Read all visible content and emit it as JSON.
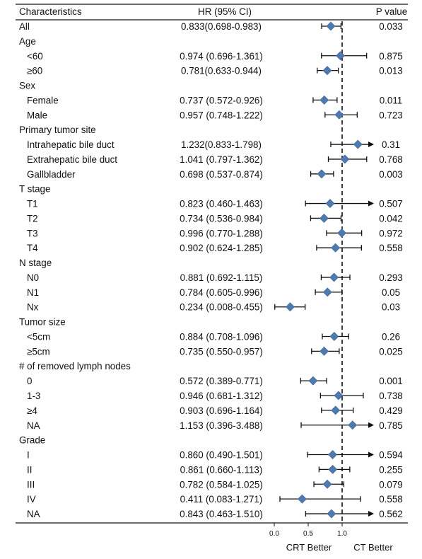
{
  "chart_data": {
    "type": "forest",
    "columns": {
      "characteristics": "Characteristics",
      "hr": "HR (95% CI)",
      "p": "P value"
    },
    "x_axis": {
      "ticks": [
        "0.0",
        "0.5",
        "1.0"
      ],
      "reference_line": 1.0,
      "xlim": [
        0.0,
        1.5
      ]
    },
    "footer": {
      "left": "CRT Better",
      "right": "CT Better"
    },
    "rows": [
      {
        "label": "All",
        "indent": 0,
        "hr_text": "0.833(0.698-0.983)",
        "p": "0.033",
        "hr": 0.833,
        "lo": 0.698,
        "hi": 0.983,
        "arrow": false
      },
      {
        "label": "Age",
        "indent": 0
      },
      {
        "label": "<60",
        "indent": 1,
        "hr_text": "0.974 (0.696-1.361)",
        "p": "0.875",
        "hr": 0.974,
        "lo": 0.696,
        "hi": 1.361,
        "arrow": false
      },
      {
        "label": "≥60",
        "indent": 1,
        "hr_text": "0.781(0.633-0.944)",
        "p": "0.013",
        "hr": 0.781,
        "lo": 0.633,
        "hi": 0.944,
        "arrow": false
      },
      {
        "label": "Sex",
        "indent": 0
      },
      {
        "label": "Female",
        "indent": 1,
        "hr_text": "0.737 (0.572-0.926)",
        "p": "0.011",
        "hr": 0.737,
        "lo": 0.572,
        "hi": 0.926,
        "arrow": false
      },
      {
        "label": "Male",
        "indent": 1,
        "hr_text": "0.957 (0.748-1.222)",
        "p": "0.723",
        "hr": 0.957,
        "lo": 0.748,
        "hi": 1.222,
        "arrow": false
      },
      {
        "label": "Primary tumor site",
        "indent": 0
      },
      {
        "label": "Intrahepatic bile duct",
        "indent": 1,
        "hr_text": "1.232(0.833-1.798)",
        "p": "0.31",
        "hr": 1.232,
        "lo": 0.833,
        "hi": 1.798,
        "arrow": true
      },
      {
        "label": "Extrahepatic bile duct",
        "indent": 1,
        "hr_text": "1.041 (0.797-1.362)",
        "p": "0.768",
        "hr": 1.041,
        "lo": 0.797,
        "hi": 1.362,
        "arrow": false
      },
      {
        "label": "Gallbladder",
        "indent": 1,
        "hr_text": "0.698 (0.537-0.874)",
        "p": "0.003",
        "hr": 0.698,
        "lo": 0.537,
        "hi": 0.874,
        "arrow": false
      },
      {
        "label": "T stage",
        "indent": 0
      },
      {
        "label": "T1",
        "indent": 1,
        "hr_text": "0.823 (0.460-1.463)",
        "p": "0.507",
        "hr": 0.823,
        "lo": 0.46,
        "hi": 1.463,
        "arrow": true
      },
      {
        "label": "T2",
        "indent": 1,
        "hr_text": "0.734 (0.536-0.984)",
        "p": "0.042",
        "hr": 0.734,
        "lo": 0.536,
        "hi": 0.984,
        "arrow": false
      },
      {
        "label": "T3",
        "indent": 1,
        "hr_text": "0.996 (0.770-1.288)",
        "p": "0.972",
        "hr": 0.996,
        "lo": 0.77,
        "hi": 1.288,
        "arrow": false
      },
      {
        "label": "T4",
        "indent": 1,
        "hr_text": "0.902 (0.624-1.285)",
        "p": "0.558",
        "hr": 0.902,
        "lo": 0.624,
        "hi": 1.285,
        "arrow": false
      },
      {
        "label": "N stage",
        "indent": 0
      },
      {
        "label": "N0",
        "indent": 1,
        "hr_text": "0.881 (0.692-1.115)",
        "p": "0.293",
        "hr": 0.881,
        "lo": 0.692,
        "hi": 1.115,
        "arrow": false
      },
      {
        "label": "N1",
        "indent": 1,
        "hr_text": "0.784 (0.605-0.996)",
        "p": "0.05",
        "hr": 0.784,
        "lo": 0.605,
        "hi": 0.996,
        "arrow": false
      },
      {
        "label": "Nx",
        "indent": 1,
        "hr_text": "0.234 (0.008-0.455)",
        "p": "0.03",
        "hr": 0.234,
        "lo": 0.008,
        "hi": 0.455,
        "arrow": false
      },
      {
        "label": "Tumor size",
        "indent": 0
      },
      {
        "label": "<5cm",
        "indent": 1,
        "hr_text": "0.884 (0.708-1.096)",
        "p": "0.26",
        "hr": 0.884,
        "lo": 0.708,
        "hi": 1.096,
        "arrow": false
      },
      {
        "label": "≥5cm",
        "indent": 1,
        "hr_text": "0.735 (0.550-0.957)",
        "p": "0.025",
        "hr": 0.735,
        "lo": 0.55,
        "hi": 0.957,
        "arrow": false
      },
      {
        "label": "# of removed lymph nodes",
        "indent": 0
      },
      {
        "label": "0",
        "indent": 1,
        "hr_text": "0.572 (0.389-0.771)",
        "p": "0.001",
        "hr": 0.572,
        "lo": 0.389,
        "hi": 0.771,
        "arrow": false
      },
      {
        "label": "1-3",
        "indent": 1,
        "hr_text": "0.946 (0.681-1.312)",
        "p": "0.738",
        "hr": 0.946,
        "lo": 0.681,
        "hi": 1.312,
        "arrow": false
      },
      {
        "label": "≥4",
        "indent": 1,
        "hr_text": "0.903 (0.696-1.164)",
        "p": "0.429",
        "hr": 0.903,
        "lo": 0.696,
        "hi": 1.164,
        "arrow": false
      },
      {
        "label": "NA",
        "indent": 1,
        "hr_text": "1.153 (0.396-3.488)",
        "p": "0.785",
        "hr": 1.153,
        "lo": 0.396,
        "hi": 3.488,
        "arrow": true
      },
      {
        "label": "Grade",
        "indent": 0
      },
      {
        "label": "I",
        "indent": 1,
        "hr_text": "0.860 (0.490-1.501)",
        "p": "0.594",
        "hr": 0.86,
        "lo": 0.49,
        "hi": 1.501,
        "arrow": true
      },
      {
        "label": "II",
        "indent": 1,
        "hr_text": "0.861 (0.660-1.113)",
        "p": "0.255",
        "hr": 0.861,
        "lo": 0.66,
        "hi": 1.113,
        "arrow": false
      },
      {
        "label": "III",
        "indent": 1,
        "hr_text": "0.782 (0.584-1.025)",
        "p": "0.079",
        "hr": 0.782,
        "lo": 0.584,
        "hi": 1.025,
        "arrow": false
      },
      {
        "label": "IV",
        "indent": 1,
        "hr_text": "0.411 (0.083-1.271)",
        "p": "0.558",
        "hr": 0.411,
        "lo": 0.083,
        "hi": 1.271,
        "arrow": false
      },
      {
        "label": "NA",
        "indent": 1,
        "hr_text": "0.843 (0.463-1.510)",
        "p": "0.562",
        "hr": 0.843,
        "lo": 0.463,
        "hi": 1.51,
        "arrow": true
      }
    ],
    "colors": {
      "marker": "#4f7ab0",
      "line": "#111111"
    }
  }
}
